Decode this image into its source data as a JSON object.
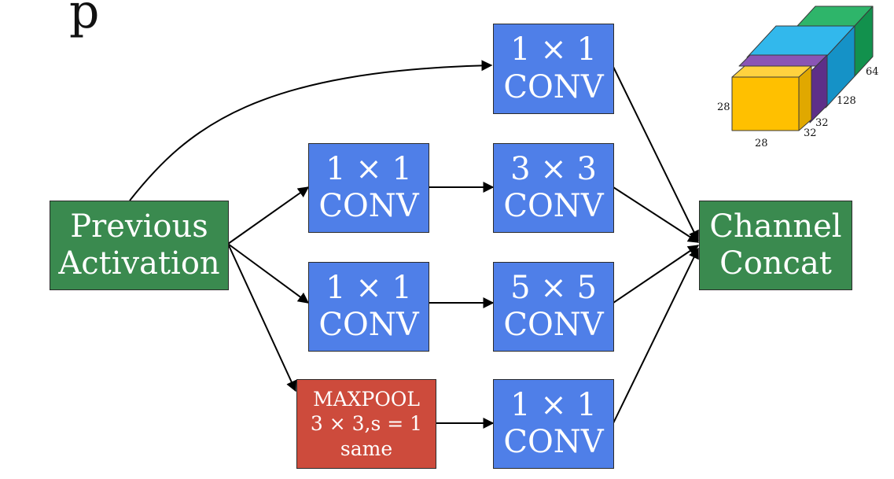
{
  "previous": [
    "Previous",
    "Activation"
  ],
  "concat": [
    "Channel",
    "Concat"
  ],
  "b1": [
    "1 × 1",
    "CONV"
  ],
  "b2a": [
    "1 × 1",
    "CONV"
  ],
  "b2b": [
    "3 × 3",
    "CONV"
  ],
  "b3a": [
    "1 × 1",
    "CONV"
  ],
  "b3b": [
    "5 × 5",
    "CONV"
  ],
  "pool": [
    "MAXPOOL",
    "3 × 3,s = 1",
    "same"
  ],
  "b4": [
    "1 × 1",
    "CONV"
  ],
  "top_glyph": "p",
  "volume": {
    "height": "28",
    "width": "28",
    "depths": [
      "32",
      "32",
      "128",
      "64"
    ]
  },
  "colors": {
    "conv": "#4f7fe8",
    "green": "#3a8a4f",
    "pool": "#cd4b3c",
    "vol_yellow": "#ffc000",
    "vol_purple": "#7a46a6",
    "vol_blue": "#2aa8e0",
    "vol_green": "#2eb56a"
  }
}
